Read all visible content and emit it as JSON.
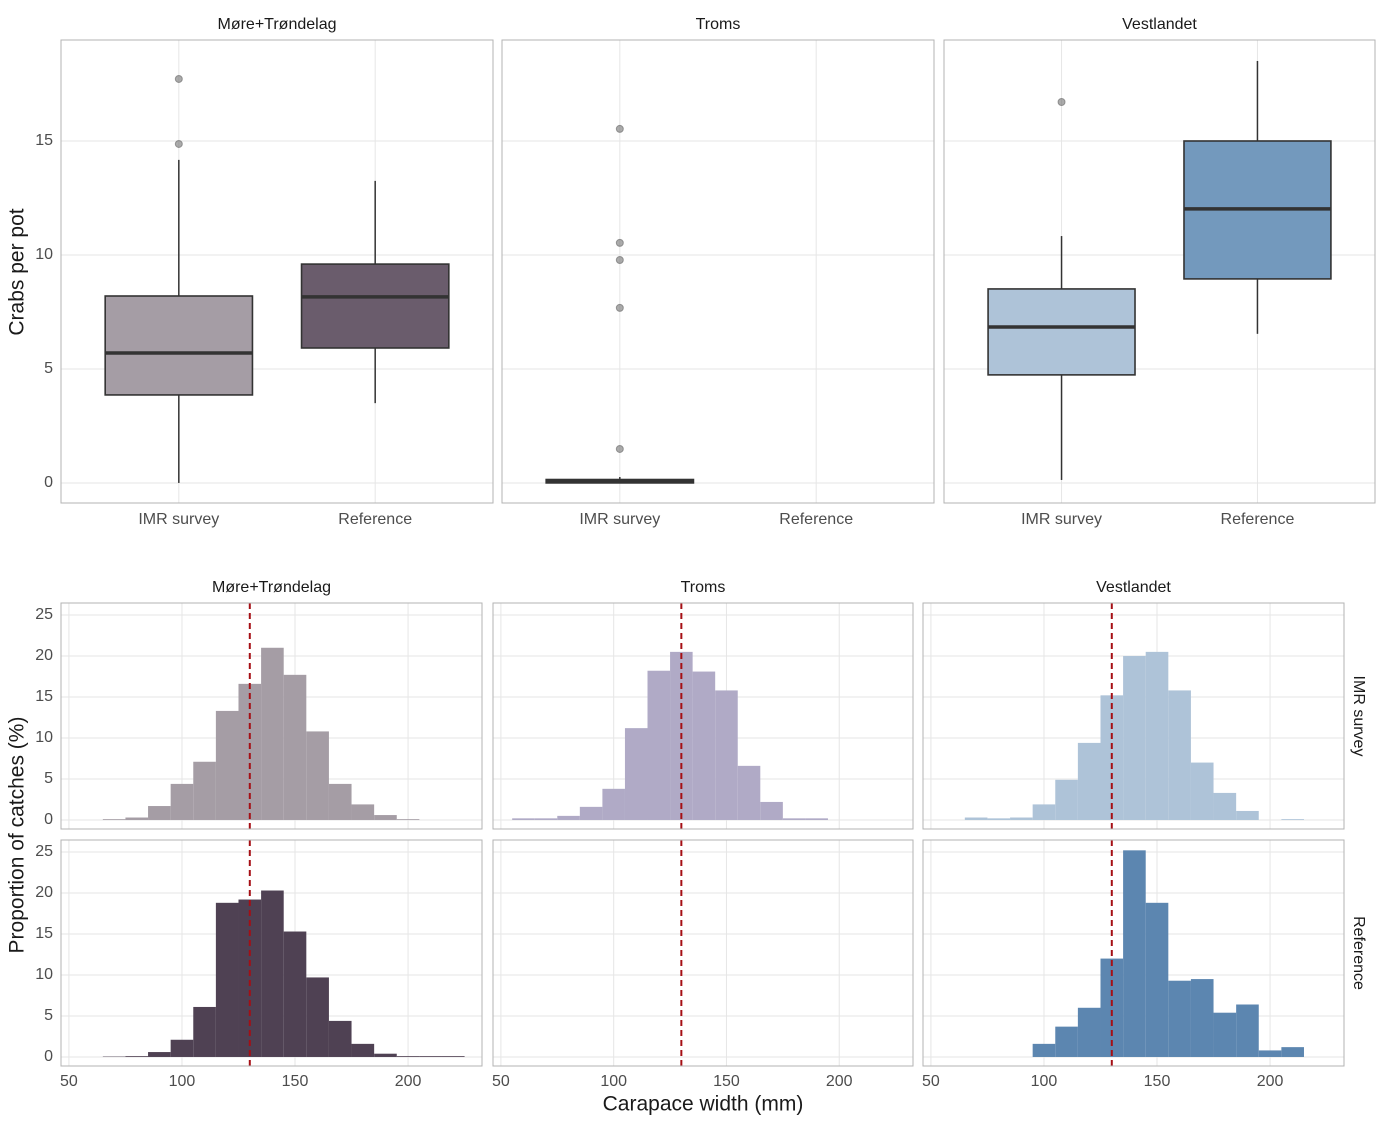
{
  "chart_data": [
    {
      "type": "box",
      "ylabel": "Crabs per pot",
      "ylim": [
        -0.88,
        19.43
      ],
      "yticks": [
        0,
        5,
        10,
        15
      ],
      "categories": [
        "IMR survey",
        "Reference"
      ],
      "panels": [
        {
          "title": "Møre+Trøndelag",
          "boxes": [
            {
              "min": 0,
              "q1": 3.86,
              "median": 5.7,
              "q3": 8.2,
              "max": 14.17,
              "outliers": [
                17.72,
                14.87
              ],
              "color": "#a59da5"
            },
            {
              "min": 3.5,
              "q1": 5.92,
              "median": 8.16,
              "q3": 9.6,
              "max": 13.25,
              "outliers": [],
              "color": "#6a5c6c"
            }
          ]
        },
        {
          "title": "Troms",
          "boxes": [
            {
              "min": 0,
              "q1": 0,
              "median": 0.05,
              "q3": 0.15,
              "max": 0.26,
              "outliers": [
                15.53,
                10.53,
                9.78,
                7.68,
                1.49
              ],
              "color": "#aeaac6"
            },
            null
          ]
        },
        {
          "title": "Vestlandet",
          "boxes": [
            {
              "min": 0.13,
              "q1": 4.74,
              "median": 6.84,
              "q3": 8.51,
              "max": 10.83,
              "outliers": [
                16.71
              ],
              "color": "#aec3d8"
            },
            {
              "min": 6.54,
              "q1": 8.95,
              "median": 12.02,
              "q3": 15.0,
              "max": 18.51,
              "outliers": [],
              "color": "#7399bd"
            }
          ]
        }
      ]
    },
    {
      "type": "histogram",
      "xlabel": "Carapace width (mm)",
      "ylabel": "Proportion of catches (%)",
      "xlim": [
        46.5,
        232.7
      ],
      "xticks": [
        50,
        100,
        150,
        200
      ],
      "ylim": [
        -1.1,
        26.46
      ],
      "yticks": [
        0,
        5,
        10,
        15,
        20,
        25
      ],
      "vline": {
        "value": 130,
        "color": "#a50f15"
      },
      "columns": [
        "Møre+Trøndelag",
        "Troms",
        "Vestlandet"
      ],
      "rows": [
        {
          "label": "IMR survey",
          "panels": [
            {
              "color": "#a59da5",
              "bins": [
                65,
                75,
                85,
                95,
                105,
                115,
                125,
                135,
                145,
                155,
                165,
                175,
                185,
                195,
                205,
                215,
                225
              ],
              "values": [
                0.1,
                0.3,
                1.7,
                4.4,
                7.1,
                13.3,
                16.6,
                21.0,
                17.7,
                10.8,
                4.4,
                1.9,
                0.6,
                0.1,
                0,
                0
              ]
            },
            {
              "color": "#b0aac6",
              "bins": [
                55,
                65,
                75,
                85,
                95,
                105,
                115,
                125,
                135,
                145,
                155,
                165,
                175,
                185,
                195
              ],
              "values": [
                0.2,
                0.2,
                0.5,
                1.6,
                3.8,
                11.2,
                18.2,
                20.5,
                18.1,
                15.8,
                6.6,
                2.2,
                0.2,
                0.2
              ]
            },
            {
              "color": "#aec3d8",
              "bins": [
                65,
                75,
                85,
                95,
                105,
                115,
                125,
                135,
                145,
                155,
                165,
                175,
                185,
                195,
                205,
                215
              ],
              "values": [
                0.3,
                0.2,
                0.3,
                1.9,
                4.9,
                9.4,
                15.2,
                20.0,
                20.5,
                15.8,
                7.0,
                3.3,
                1.1,
                0,
                0.1
              ]
            }
          ]
        },
        {
          "label": "Reference",
          "panels": [
            {
              "color": "#4f4153",
              "bins": [
                65,
                75,
                85,
                95,
                105,
                115,
                125,
                135,
                145,
                155,
                165,
                175,
                185,
                195,
                205,
                215,
                225
              ],
              "values": [
                0.05,
                0.1,
                0.6,
                2.1,
                6.1,
                18.8,
                19.2,
                20.3,
                15.3,
                9.7,
                4.4,
                1.6,
                0.4,
                0.1,
                0.1,
                0.1
              ]
            },
            null,
            {
              "color": "#5c86b0",
              "bins": [
                95,
                105,
                115,
                125,
                135,
                145,
                155,
                165,
                175,
                185,
                195,
                205,
                215
              ],
              "values": [
                1.6,
                3.7,
                6.0,
                12.0,
                25.2,
                18.8,
                9.3,
                9.5,
                5.4,
                6.4,
                0.8,
                1.2
              ]
            }
          ]
        }
      ]
    }
  ]
}
